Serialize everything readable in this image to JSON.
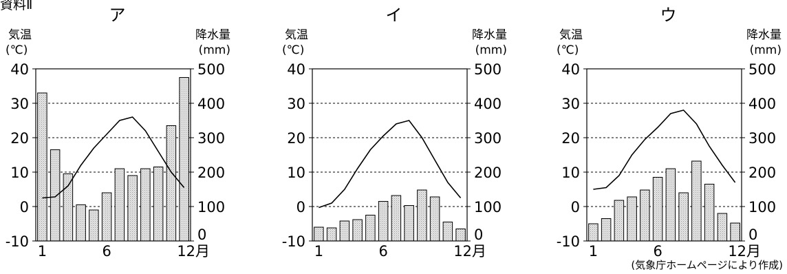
{
  "figure_label": "資料Ⅱ",
  "source": "(気象庁ホームページにより作成)",
  "chart_data": [
    {
      "type": "bar",
      "title": "ア",
      "left_axis_label": [
        "気温",
        "(℃)"
      ],
      "right_axis_label": [
        "降水量",
        "(mm)"
      ],
      "x": [
        1,
        2,
        3,
        4,
        5,
        6,
        7,
        8,
        9,
        10,
        11,
        12
      ],
      "xtick_labels": [
        "1",
        "6",
        "12月"
      ],
      "left_ylim": [
        -10,
        40
      ],
      "left_yticks": [
        "40",
        "30",
        "20",
        "10",
        "0",
        "-10"
      ],
      "right_ylim": [
        0,
        500
      ],
      "right_yticks": [
        "500",
        "400",
        "300",
        "200",
        "100",
        "0"
      ],
      "grid": "dashed horizontal",
      "series": [
        {
          "kind": "bar",
          "axis": "right",
          "values": [
            430,
            265,
            195,
            105,
            90,
            140,
            210,
            190,
            210,
            215,
            335,
            475
          ]
        },
        {
          "kind": "line",
          "axis": "left",
          "values": [
            2.5,
            2.8,
            6,
            12,
            17,
            21,
            25,
            26,
            22,
            16,
            10,
            5.5
          ]
        }
      ]
    },
    {
      "type": "bar",
      "title": "イ",
      "left_axis_label": [
        "気温",
        "(℃)"
      ],
      "right_axis_label": [
        "降水量",
        "(mm)"
      ],
      "x": [
        1,
        2,
        3,
        4,
        5,
        6,
        7,
        8,
        9,
        10,
        11,
        12
      ],
      "xtick_labels": [
        "1",
        "6",
        "12月"
      ],
      "left_ylim": [
        -10,
        40
      ],
      "left_yticks": [
        "40",
        "30",
        "20",
        "10",
        "0",
        "-10"
      ],
      "right_ylim": [
        0,
        500
      ],
      "right_yticks": [
        "500",
        "400",
        "300",
        "200",
        "100",
        "0"
      ],
      "grid": "dashed horizontal",
      "series": [
        {
          "kind": "bar",
          "axis": "right",
          "values": [
            40,
            38,
            58,
            62,
            75,
            115,
            132,
            103,
            148,
            128,
            55,
            35
          ]
        },
        {
          "kind": "line",
          "axis": "left",
          "values": [
            -0.3,
            1,
            5,
            11,
            16.5,
            20.5,
            24,
            25,
            20,
            13.5,
            7,
            2.5
          ]
        }
      ]
    },
    {
      "type": "bar",
      "title": "ウ",
      "left_axis_label": [
        "気温",
        "(℃)"
      ],
      "right_axis_label": [
        "降水量",
        "(mm)"
      ],
      "x": [
        1,
        2,
        3,
        4,
        5,
        6,
        7,
        8,
        9,
        10,
        11,
        12
      ],
      "xtick_labels": [
        "1",
        "6",
        "12月"
      ],
      "left_ylim": [
        -10,
        40
      ],
      "left_yticks": [
        "40",
        "30",
        "20",
        "10",
        "0",
        "-10"
      ],
      "right_ylim": [
        0,
        500
      ],
      "right_yticks": [
        "500",
        "400",
        "300",
        "200",
        "100",
        "0"
      ],
      "grid": "dashed horizontal",
      "series": [
        {
          "kind": "bar",
          "axis": "right",
          "values": [
            50,
            65,
            118,
            128,
            148,
            185,
            210,
            140,
            232,
            165,
            80,
            52
          ]
        },
        {
          "kind": "line",
          "axis": "left",
          "values": [
            5,
            5.5,
            9,
            15,
            19.5,
            23,
            27,
            28,
            24,
            17.5,
            12,
            7
          ]
        }
      ]
    }
  ]
}
